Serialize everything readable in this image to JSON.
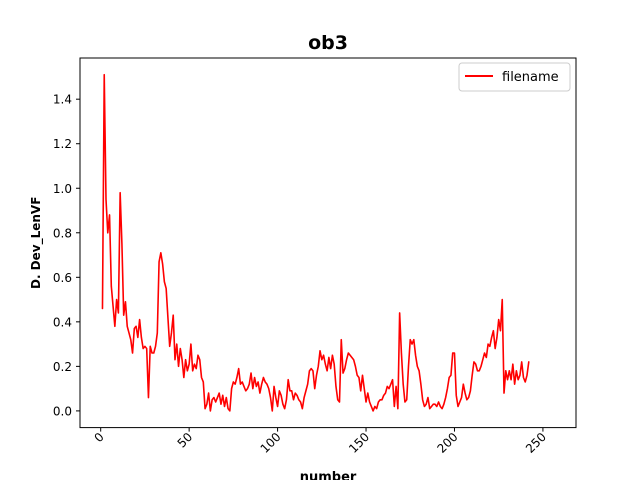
{
  "chart_data": {
    "type": "line",
    "title": "ob3",
    "xlabel": "number",
    "ylabel": "D. Dev_LenVF",
    "xlim": [
      -11.7,
      268.7
    ],
    "ylim": [
      -0.075,
      1.585
    ],
    "xticks": [
      0,
      50,
      100,
      150,
      200,
      250
    ],
    "yticks": [
      0.0,
      0.2,
      0.4,
      0.6,
      0.8,
      1.0,
      1.2,
      1.4
    ],
    "ytick_labels": [
      "0.0",
      "0.2",
      "0.4",
      "0.6",
      "0.8",
      "1.0",
      "1.2",
      "1.4"
    ],
    "grid": false,
    "legend": {
      "position": "top-right"
    },
    "series": [
      {
        "name": "filename",
        "color": "#ff0000",
        "points": [
          [
            1,
            0.46
          ],
          [
            2,
            1.51
          ],
          [
            3,
            0.95
          ],
          [
            4,
            0.8
          ],
          [
            5,
            0.88
          ],
          [
            6,
            0.56
          ],
          [
            7,
            0.47
          ],
          [
            8,
            0.38
          ],
          [
            9,
            0.5
          ],
          [
            10,
            0.44
          ],
          [
            11,
            0.98
          ],
          [
            12,
            0.75
          ],
          [
            13,
            0.43
          ],
          [
            14,
            0.49
          ],
          [
            15,
            0.38
          ],
          [
            16,
            0.35
          ],
          [
            17,
            0.32
          ],
          [
            18,
            0.26
          ],
          [
            19,
            0.37
          ],
          [
            20,
            0.38
          ],
          [
            21,
            0.33
          ],
          [
            22,
            0.41
          ],
          [
            23,
            0.33
          ],
          [
            24,
            0.28
          ],
          [
            25,
            0.29
          ],
          [
            26,
            0.28
          ],
          [
            27,
            0.06
          ],
          [
            28,
            0.29
          ],
          [
            29,
            0.26
          ],
          [
            30,
            0.26
          ],
          [
            31,
            0.29
          ],
          [
            32,
            0.35
          ],
          [
            33,
            0.67
          ],
          [
            34,
            0.71
          ],
          [
            35,
            0.66
          ],
          [
            36,
            0.58
          ],
          [
            37,
            0.55
          ],
          [
            38,
            0.42
          ],
          [
            39,
            0.29
          ],
          [
            40,
            0.35
          ],
          [
            41,
            0.43
          ],
          [
            42,
            0.23
          ],
          [
            43,
            0.3
          ],
          [
            44,
            0.2
          ],
          [
            45,
            0.28
          ],
          [
            46,
            0.23
          ],
          [
            47,
            0.15
          ],
          [
            48,
            0.23
          ],
          [
            49,
            0.18
          ],
          [
            50,
            0.21
          ],
          [
            51,
            0.3
          ],
          [
            52,
            0.18
          ],
          [
            53,
            0.21
          ],
          [
            54,
            0.19
          ],
          [
            55,
            0.25
          ],
          [
            56,
            0.23
          ],
          [
            57,
            0.15
          ],
          [
            58,
            0.13
          ],
          [
            59,
            0.01
          ],
          [
            60,
            0.03
          ],
          [
            61,
            0.08
          ],
          [
            62,
            0.0
          ],
          [
            63,
            0.05
          ],
          [
            64,
            0.06
          ],
          [
            65,
            0.04
          ],
          [
            66,
            0.06
          ],
          [
            67,
            0.08
          ],
          [
            68,
            0.03
          ],
          [
            69,
            0.07
          ],
          [
            70,
            0.02
          ],
          [
            71,
            0.06
          ],
          [
            72,
            0.01
          ],
          [
            73,
            0.0
          ],
          [
            74,
            0.1
          ],
          [
            75,
            0.13
          ],
          [
            76,
            0.12
          ],
          [
            77,
            0.15
          ],
          [
            78,
            0.19
          ],
          [
            79,
            0.12
          ],
          [
            80,
            0.13
          ],
          [
            81,
            0.11
          ],
          [
            82,
            0.09
          ],
          [
            83,
            0.1
          ],
          [
            84,
            0.12
          ],
          [
            85,
            0.17
          ],
          [
            86,
            0.1
          ],
          [
            87,
            0.15
          ],
          [
            88,
            0.11
          ],
          [
            89,
            0.13
          ],
          [
            90,
            0.08
          ],
          [
            91,
            0.12
          ],
          [
            92,
            0.15
          ],
          [
            93,
            0.13
          ],
          [
            94,
            0.12
          ],
          [
            95,
            0.1
          ],
          [
            96,
            0.06
          ],
          [
            97,
            0.0
          ],
          [
            98,
            0.11
          ],
          [
            99,
            0.06
          ],
          [
            100,
            0.02
          ],
          [
            101,
            0.09
          ],
          [
            102,
            0.07
          ],
          [
            103,
            0.03
          ],
          [
            104,
            0.01
          ],
          [
            105,
            0.05
          ],
          [
            106,
            0.14
          ],
          [
            107,
            0.09
          ],
          [
            108,
            0.09
          ],
          [
            109,
            0.05
          ],
          [
            110,
            0.08
          ],
          [
            111,
            0.07
          ],
          [
            112,
            0.05
          ],
          [
            113,
            0.04
          ],
          [
            114,
            0.01
          ],
          [
            115,
            0.06
          ],
          [
            116,
            0.09
          ],
          [
            117,
            0.12
          ],
          [
            118,
            0.18
          ],
          [
            119,
            0.19
          ],
          [
            120,
            0.18
          ],
          [
            121,
            0.1
          ],
          [
            122,
            0.16
          ],
          [
            123,
            0.2
          ],
          [
            124,
            0.27
          ],
          [
            125,
            0.23
          ],
          [
            126,
            0.25
          ],
          [
            127,
            0.21
          ],
          [
            128,
            0.18
          ],
          [
            129,
            0.24
          ],
          [
            130,
            0.19
          ],
          [
            131,
            0.25
          ],
          [
            132,
            0.21
          ],
          [
            133,
            0.11
          ],
          [
            134,
            0.05
          ],
          [
            135,
            0.04
          ],
          [
            136,
            0.32
          ],
          [
            137,
            0.17
          ],
          [
            138,
            0.19
          ],
          [
            139,
            0.23
          ],
          [
            140,
            0.26
          ],
          [
            141,
            0.25
          ],
          [
            142,
            0.24
          ],
          [
            143,
            0.23
          ],
          [
            144,
            0.2
          ],
          [
            145,
            0.16
          ],
          [
            146,
            0.15
          ],
          [
            147,
            0.09
          ],
          [
            148,
            0.16
          ],
          [
            149,
            0.1
          ],
          [
            150,
            0.04
          ],
          [
            151,
            0.08
          ],
          [
            152,
            0.04
          ],
          [
            153,
            0.02
          ],
          [
            154,
            0.0
          ],
          [
            155,
            0.02
          ],
          [
            156,
            0.01
          ],
          [
            157,
            0.04
          ],
          [
            158,
            0.05
          ],
          [
            159,
            0.05
          ],
          [
            160,
            0.07
          ],
          [
            161,
            0.08
          ],
          [
            162,
            0.11
          ],
          [
            163,
            0.1
          ],
          [
            164,
            0.12
          ],
          [
            165,
            0.14
          ],
          [
            166,
            0.02
          ],
          [
            167,
            0.11
          ],
          [
            168,
            0.01
          ],
          [
            169,
            0.44
          ],
          [
            170,
            0.26
          ],
          [
            171,
            0.12
          ],
          [
            172,
            0.04
          ],
          [
            173,
            0.05
          ],
          [
            174,
            0.2
          ],
          [
            175,
            0.32
          ],
          [
            176,
            0.3
          ],
          [
            177,
            0.32
          ],
          [
            178,
            0.25
          ],
          [
            179,
            0.2
          ],
          [
            180,
            0.18
          ],
          [
            181,
            0.12
          ],
          [
            182,
            0.05
          ],
          [
            183,
            0.02
          ],
          [
            184,
            0.03
          ],
          [
            185,
            0.06
          ],
          [
            186,
            0.01
          ],
          [
            187,
            0.02
          ],
          [
            188,
            0.03
          ],
          [
            189,
            0.03
          ],
          [
            190,
            0.02
          ],
          [
            191,
            0.04
          ],
          [
            192,
            0.02
          ],
          [
            193,
            0.01
          ],
          [
            194,
            0.03
          ],
          [
            195,
            0.06
          ],
          [
            196,
            0.1
          ],
          [
            197,
            0.15
          ],
          [
            198,
            0.16
          ],
          [
            199,
            0.26
          ],
          [
            200,
            0.26
          ],
          [
            201,
            0.07
          ],
          [
            202,
            0.02
          ],
          [
            203,
            0.04
          ],
          [
            204,
            0.06
          ],
          [
            205,
            0.12
          ],
          [
            206,
            0.08
          ],
          [
            207,
            0.05
          ],
          [
            208,
            0.06
          ],
          [
            209,
            0.09
          ],
          [
            210,
            0.16
          ],
          [
            211,
            0.22
          ],
          [
            212,
            0.21
          ],
          [
            213,
            0.18
          ],
          [
            214,
            0.18
          ],
          [
            215,
            0.2
          ],
          [
            216,
            0.23
          ],
          [
            217,
            0.26
          ],
          [
            218,
            0.24
          ],
          [
            219,
            0.3
          ],
          [
            220,
            0.29
          ],
          [
            221,
            0.33
          ],
          [
            222,
            0.36
          ],
          [
            223,
            0.28
          ],
          [
            224,
            0.33
          ],
          [
            225,
            0.41
          ],
          [
            226,
            0.36
          ],
          [
            227,
            0.5
          ],
          [
            228,
            0.08
          ],
          [
            229,
            0.18
          ],
          [
            230,
            0.14
          ],
          [
            231,
            0.18
          ],
          [
            232,
            0.14
          ],
          [
            233,
            0.21
          ],
          [
            234,
            0.12
          ],
          [
            235,
            0.18
          ],
          [
            236,
            0.14
          ],
          [
            237,
            0.16
          ],
          [
            238,
            0.22
          ],
          [
            239,
            0.15
          ],
          [
            240,
            0.13
          ],
          [
            241,
            0.16
          ],
          [
            242,
            0.22
          ]
        ]
      }
    ]
  }
}
